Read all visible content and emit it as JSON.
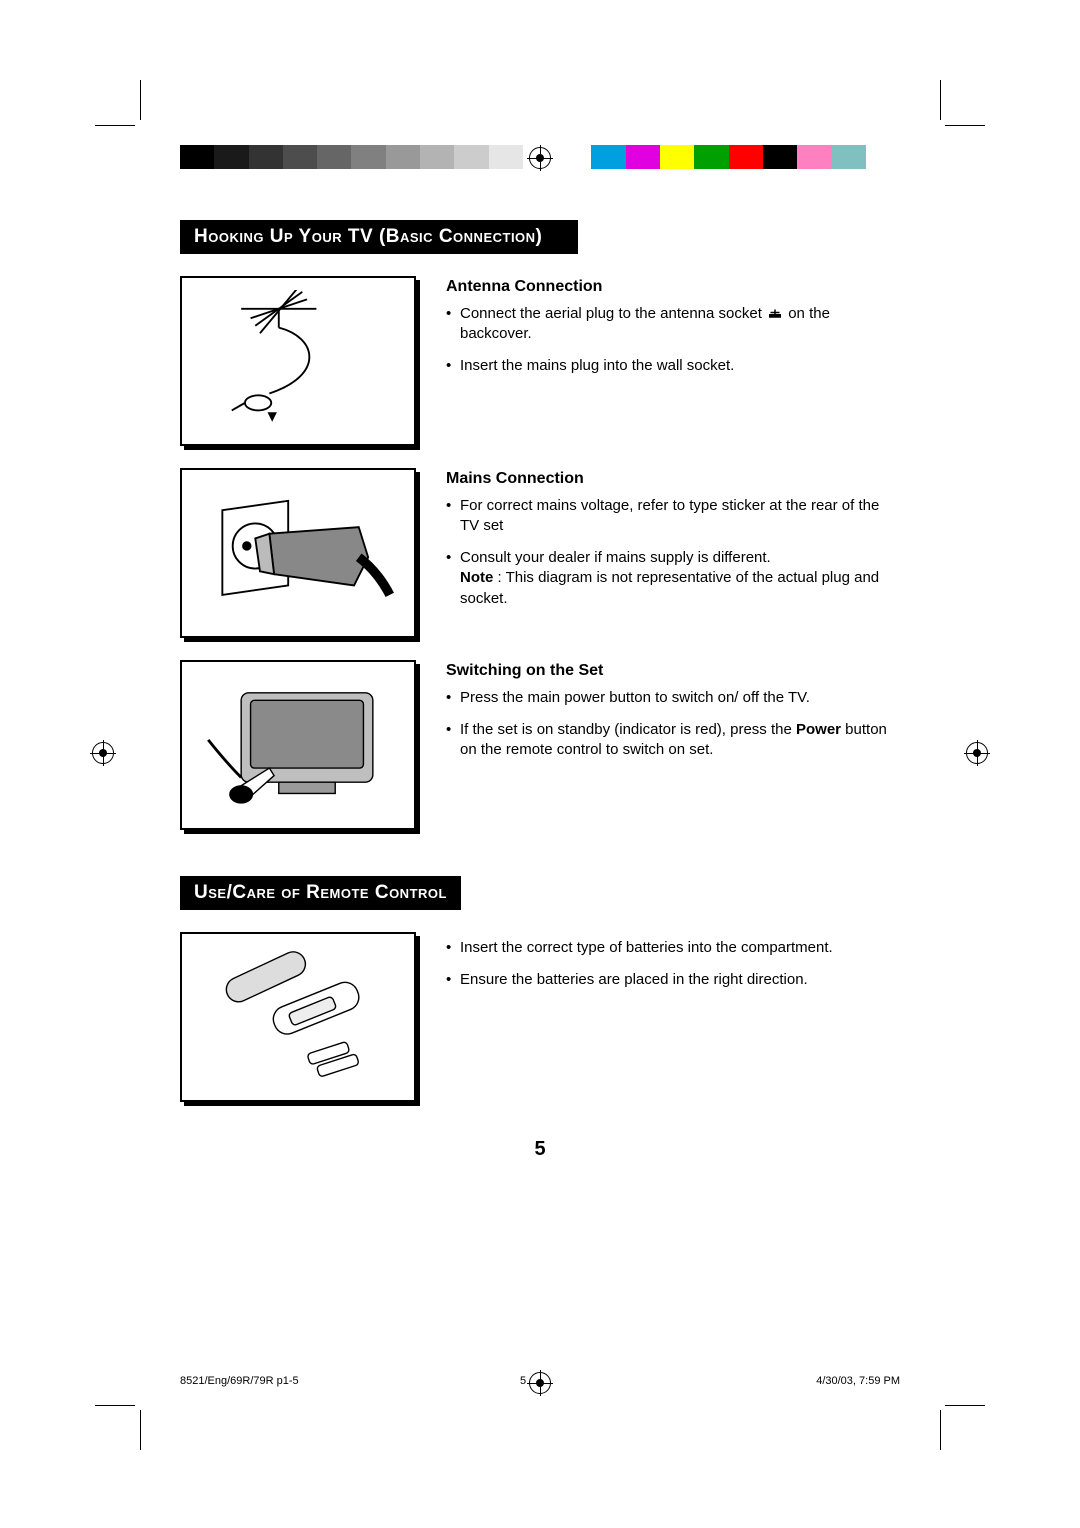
{
  "colorbar": {
    "swatches": [
      "#000000",
      "#1a1a1a",
      "#333333",
      "#4d4d4d",
      "#666666",
      "#808080",
      "#999999",
      "#b3b3b3",
      "#cccccc",
      "#e6e6e6",
      "#ffffff",
      "#ffffff",
      "#00a0e0",
      "#e000e0",
      "#ffff00",
      "#00a000",
      "#ff0000",
      "#000000",
      "#ff80c0",
      "#80c0c0",
      "#ffffff"
    ]
  },
  "heading1": "Hooking Up Your TV (Basic Connection)",
  "heading2": "Use/Care of Remote Control",
  "sections": {
    "antenna": {
      "title": "Antenna Connection",
      "b1_pre": "Connect the aerial plug to the antenna socket ",
      "b1_post": " on the backcover.",
      "b2": "Insert the mains plug into the wall socket."
    },
    "mains": {
      "title": "Mains Connection",
      "b1": "For correct mains voltage, refer to type sticker at the rear of the TV set",
      "b2": "Consult your dealer if mains supply is different.",
      "note_label": "Note",
      "note_text": " : This diagram is not representative of the actual plug and socket."
    },
    "switch": {
      "title": "Switching on the Set",
      "b1": "Press the main power button to switch on/ off the TV.",
      "b2_pre": "If the set is on standby (indicator is red), press the ",
      "b2_bold": "Power",
      "b2_post": " button on the remote control to switch on set."
    },
    "remote": {
      "b1": "Insert the correct type of batteries into the compartment.",
      "b2": "Ensure the batteries are placed in the right direction."
    }
  },
  "page_number": "5",
  "footer": {
    "left": "8521/Eng/69R/79R p1-5",
    "mid": "5",
    "right": "4/30/03, 7:59 PM"
  }
}
